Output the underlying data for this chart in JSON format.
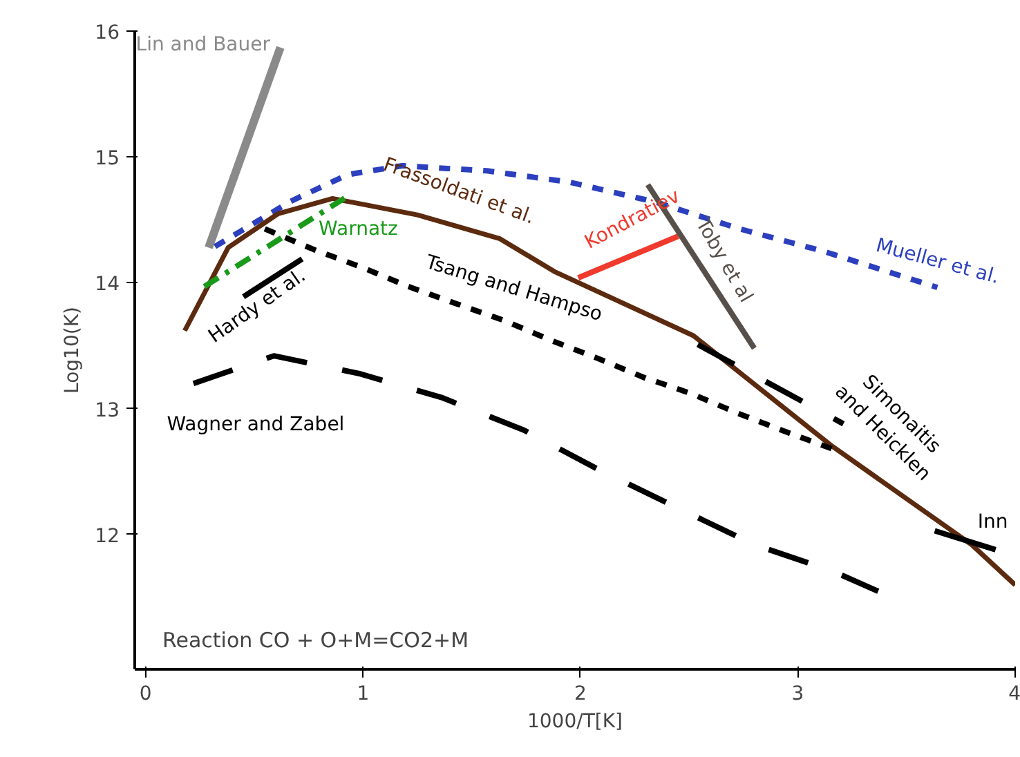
{
  "chart_data": {
    "type": "line",
    "xlabel": "1000/T[K]",
    "ylabel": "Log10(K)",
    "xlim": [
      -0.05,
      4.0
    ],
    "ylim": [
      10.93,
      16
    ],
    "xticks": [
      0,
      1,
      2,
      3,
      4
    ],
    "yticks": [
      12,
      13,
      14,
      15,
      16
    ],
    "grid": false,
    "annotations": [
      "Reaction CO + O+M=CO2+M"
    ],
    "series": [
      {
        "name": "Lin and Bauer",
        "color": "#8a8a8a",
        "line_style": "solid",
        "x": [
          0.29,
          0.62
        ],
        "values": [
          14.28,
          15.87
        ]
      },
      {
        "name": "Mueller et al.",
        "color": "#2b3fbf",
        "line_style": "dotted",
        "x": [
          0.33,
          0.67,
          0.93,
          1.18,
          1.57,
          1.95,
          2.35,
          2.73,
          3.12,
          3.63
        ],
        "values": [
          14.3,
          14.65,
          14.86,
          14.93,
          14.89,
          14.8,
          14.64,
          14.43,
          14.25,
          13.97
        ]
      },
      {
        "name": "Frassoldati et al.",
        "color": "#5c2a0e",
        "line_style": "solid",
        "x": [
          0.18,
          0.38,
          0.61,
          0.86,
          1.25,
          1.63,
          1.88,
          2.52,
          3.16,
          3.8,
          4.0
        ],
        "values": [
          13.62,
          14.28,
          14.55,
          14.67,
          14.54,
          14.35,
          14.09,
          13.58,
          12.7,
          11.92,
          11.6
        ]
      },
      {
        "name": "Warnatz",
        "color": "#1a9a1a",
        "line_style": "dashdot",
        "x": [
          0.27,
          0.94
        ],
        "values": [
          13.97,
          14.7
        ]
      },
      {
        "name": "Kondratiev",
        "color": "#f03a2e",
        "line_style": "solid",
        "x": [
          1.99,
          2.45
        ],
        "values": [
          14.04,
          14.37
        ]
      },
      {
        "name": "Toby et al",
        "color": "#57504a",
        "line_style": "solid",
        "x": [
          2.31,
          2.8
        ],
        "values": [
          14.78,
          13.48
        ]
      },
      {
        "name": "Hardy et al.",
        "color": "#000000",
        "line_style": "solid",
        "x": [
          0.45,
          0.72
        ],
        "values": [
          13.89,
          14.19
        ]
      },
      {
        "name": "Tsang and Hampso",
        "color": "#000000",
        "line_style": "dotted",
        "x": [
          0.56,
          0.78,
          1.0,
          1.21,
          1.42,
          1.65,
          1.87,
          2.08,
          2.29,
          2.51,
          2.73,
          2.94,
          3.16
        ],
        "values": [
          14.42,
          14.26,
          14.12,
          13.97,
          13.84,
          13.7,
          13.54,
          13.4,
          13.25,
          13.12,
          12.96,
          12.82,
          12.68
        ]
      },
      {
        "name": "Wagner and Zabel",
        "color": "#000000",
        "line_style": "dashed",
        "x": [
          0.22,
          0.59,
          0.98,
          1.36,
          1.74,
          2.08,
          2.45,
          2.8,
          3.16,
          3.37
        ],
        "values": [
          13.2,
          13.42,
          13.28,
          13.09,
          12.83,
          12.52,
          12.21,
          11.92,
          11.71,
          11.55
        ]
      },
      {
        "name": "Simonaitis\nand Heicklen",
        "color": "#000000",
        "line_style": "dashed",
        "x": [
          2.54,
          3.21
        ],
        "values": [
          13.51,
          12.88
        ]
      },
      {
        "name": "Inn",
        "color": "#000000",
        "line_style": "solid",
        "x": [
          3.63,
          3.91
        ],
        "values": [
          12.03,
          11.88
        ]
      }
    ]
  }
}
